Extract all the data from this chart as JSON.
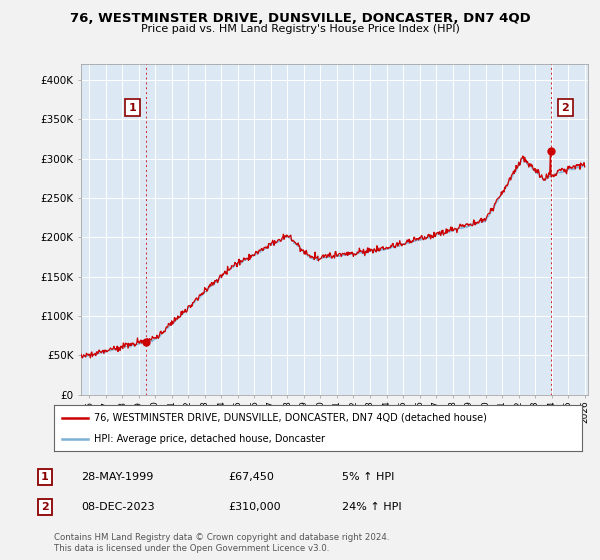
{
  "title": "76, WESTMINSTER DRIVE, DUNSVILLE, DONCASTER, DN7 4QD",
  "subtitle": "Price paid vs. HM Land Registry's House Price Index (HPI)",
  "ylabel_ticks": [
    "£0",
    "£50K",
    "£100K",
    "£150K",
    "£200K",
    "£250K",
    "£300K",
    "£350K",
    "£400K"
  ],
  "ytick_values": [
    0,
    50000,
    100000,
    150000,
    200000,
    250000,
    300000,
    350000,
    400000
  ],
  "ylim": [
    0,
    420000
  ],
  "xlim_start": 1995.5,
  "xlim_end": 2026.2,
  "sale1_year": 1999.41,
  "sale1_price": 67450,
  "sale2_year": 2023.93,
  "sale2_price": 310000,
  "house_color": "#cc0000",
  "hpi_color": "#7bafd4",
  "plot_bg_color": "#dce9f5",
  "background_color": "#f2f2f2",
  "legend_line1": "76, WESTMINSTER DRIVE, DUNSVILLE, DONCASTER, DN7 4QD (detached house)",
  "legend_line2": "HPI: Average price, detached house, Doncaster",
  "table_row1": [
    "1",
    "28-MAY-1999",
    "£67,450",
    "5% ↑ HPI"
  ],
  "table_row2": [
    "2",
    "08-DEC-2023",
    "£310,000",
    "24% ↑ HPI"
  ],
  "footer": "Contains HM Land Registry data © Crown copyright and database right 2024.\nThis data is licensed under the Open Government Licence v3.0.",
  "xtick_years": [
    1996,
    1997,
    1998,
    1999,
    2000,
    2001,
    2002,
    2003,
    2004,
    2005,
    2006,
    2007,
    2008,
    2009,
    2010,
    2011,
    2012,
    2013,
    2014,
    2015,
    2016,
    2017,
    2018,
    2019,
    2020,
    2021,
    2022,
    2023,
    2024,
    2025,
    2026
  ]
}
